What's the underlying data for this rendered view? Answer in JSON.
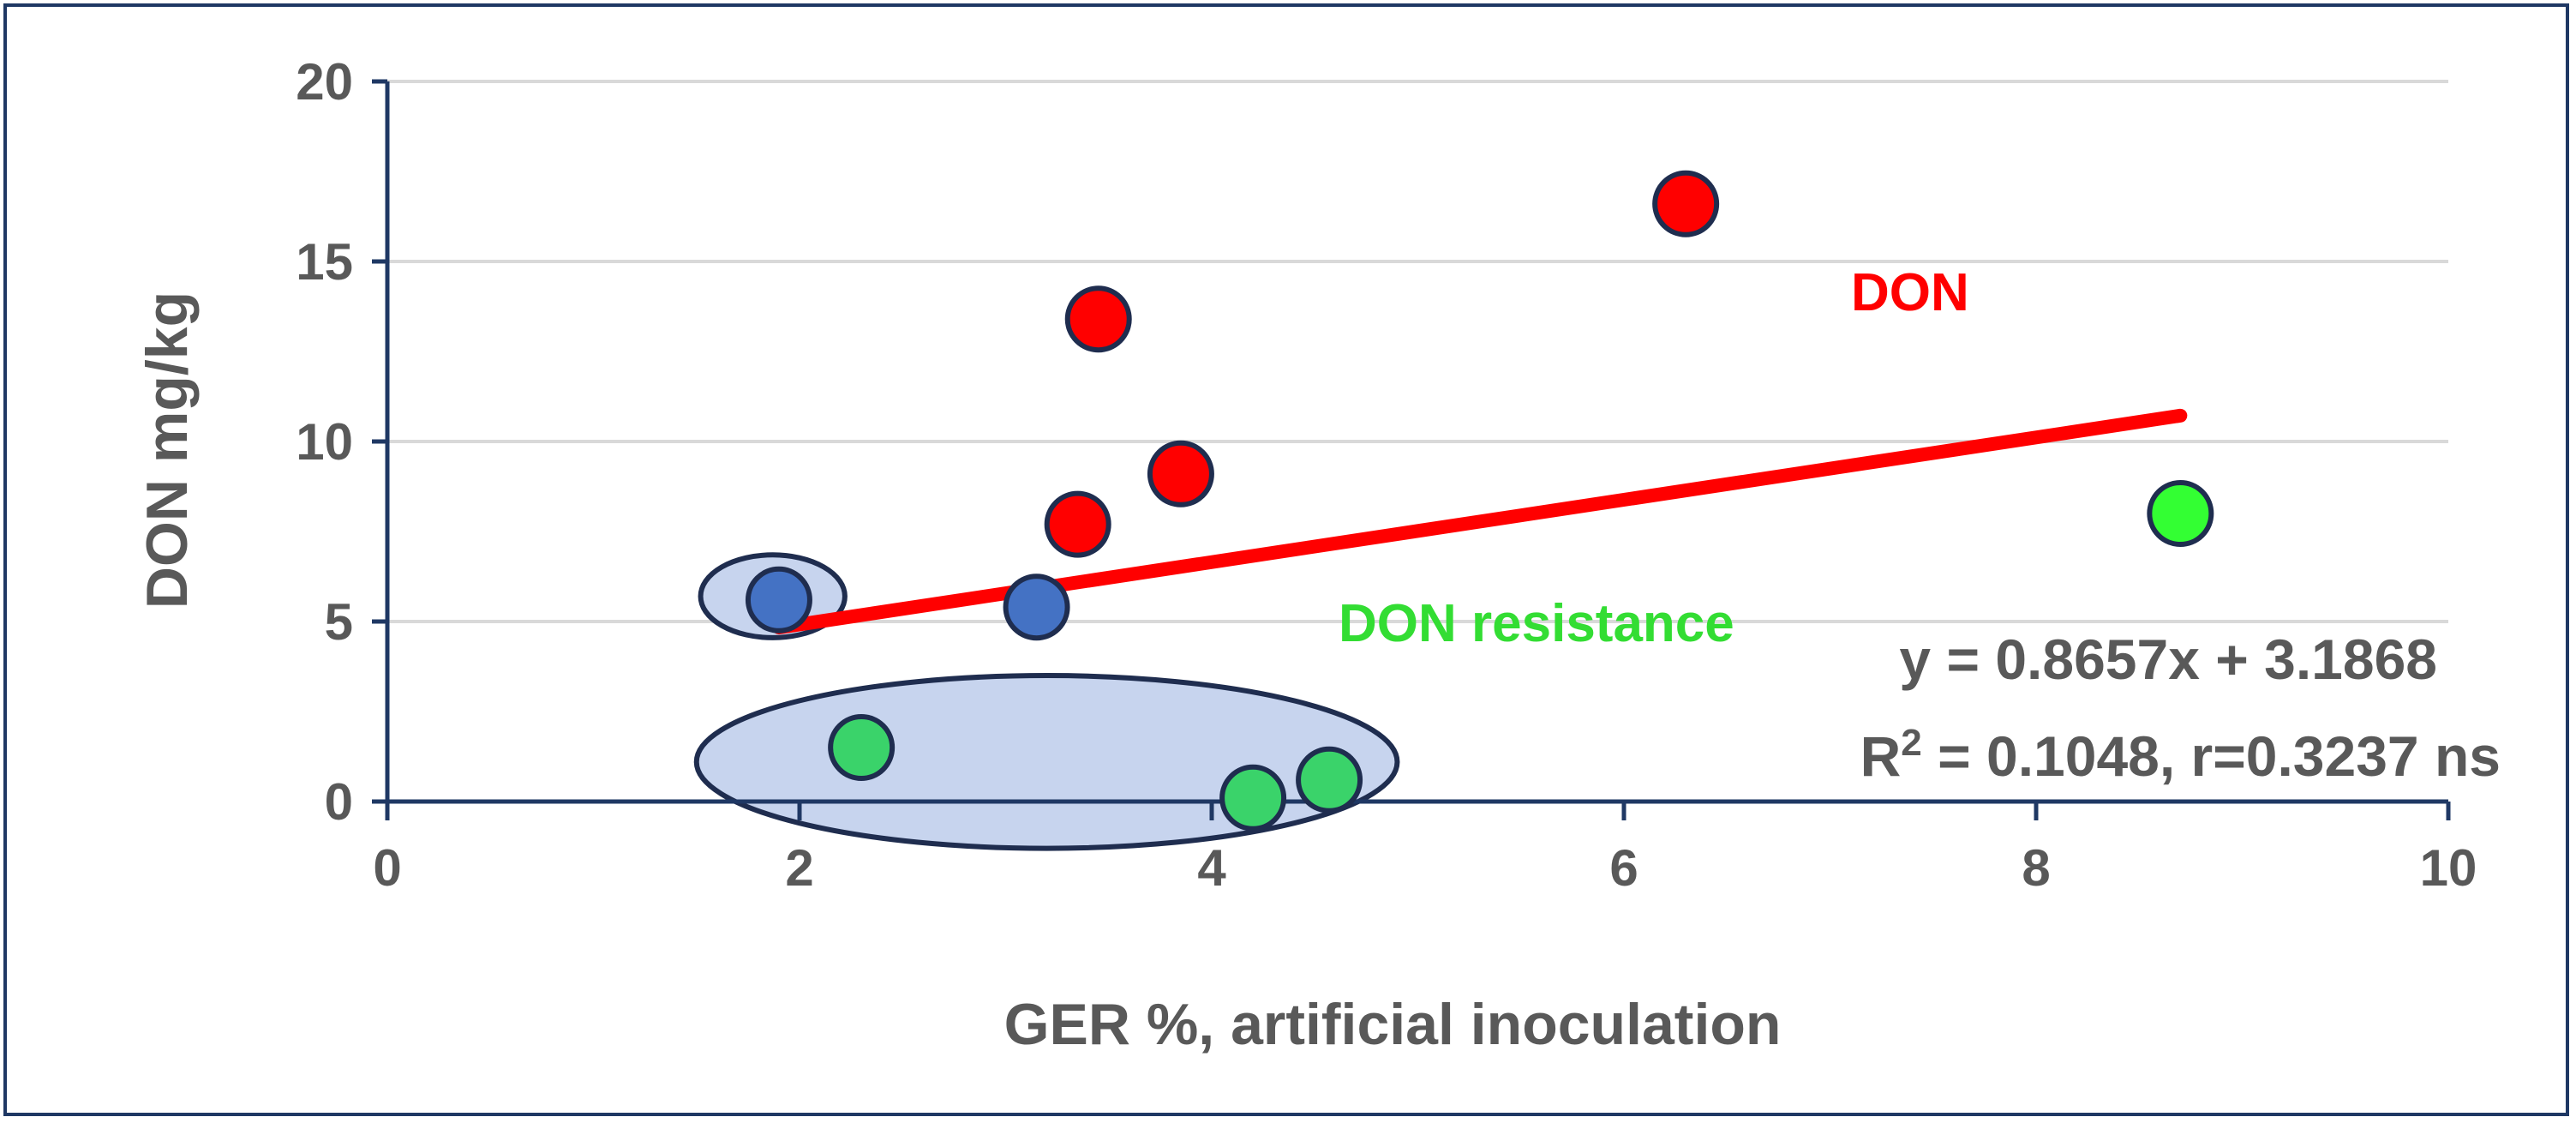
{
  "colors": {
    "don_red": "#ff0000",
    "blue_point": "#4472c4",
    "green_point_light": "#33ff33",
    "green_point": "#3ad36a",
    "ellipse_fill": "#c7d4ee",
    "ellipse_stroke": "#1f2d4f",
    "grid": "#d9d9d9",
    "axis": "#1f3864",
    "text_gray": "#595959",
    "frame": "#1f3864"
  },
  "chart_data": {
    "type": "scatter",
    "xlabel": "GER %, artificial inoculation",
    "ylabel": "DON mg/kg",
    "xlim": [
      0,
      10
    ],
    "ylim": [
      0,
      20
    ],
    "x_ticks": [
      "0",
      "2",
      "4",
      "6",
      "8",
      "10"
    ],
    "y_ticks": [
      "0",
      "5",
      "10",
      "15",
      "20"
    ],
    "gridlines": "horizontal",
    "series": [
      {
        "name": "DON",
        "color": "#ff0000",
        "points": [
          [
            3.45,
            13.4
          ],
          [
            3.35,
            7.7
          ],
          [
            3.85,
            9.1
          ],
          [
            6.3,
            16.6
          ]
        ]
      },
      {
        "name": "Blue",
        "color": "#4472c4",
        "points": [
          [
            1.9,
            5.6
          ],
          [
            3.15,
            5.4
          ]
        ]
      },
      {
        "name": "DON resistance",
        "color": "#3ad36a",
        "points": [
          [
            2.3,
            1.5
          ],
          [
            4.2,
            0.1
          ],
          [
            4.57,
            0.6
          ],
          [
            8.7,
            8.0
          ]
        ]
      }
    ],
    "trendline": {
      "slope": 0.8657,
      "intercept": 3.1868,
      "x_from": 1.9,
      "x_to": 8.7,
      "color": "#ff0000"
    },
    "groups": [
      {
        "name": "blue-group",
        "cx": 1.87,
        "cy": 5.7,
        "rx": 0.35,
        "ry": 1.15
      },
      {
        "name": "green-group",
        "cx": 3.2,
        "cy": 1.1,
        "rx": 1.7,
        "ry": 2.4
      }
    ],
    "annotations": {
      "don_label": "DON",
      "resistance_label": "DON resistance",
      "equation": "y = 0.8657x + 3.1868",
      "r2_prefix": "R",
      "r2_sup": "2",
      "r2_rest": " = 0.1048, r=0.3237 ns"
    }
  }
}
